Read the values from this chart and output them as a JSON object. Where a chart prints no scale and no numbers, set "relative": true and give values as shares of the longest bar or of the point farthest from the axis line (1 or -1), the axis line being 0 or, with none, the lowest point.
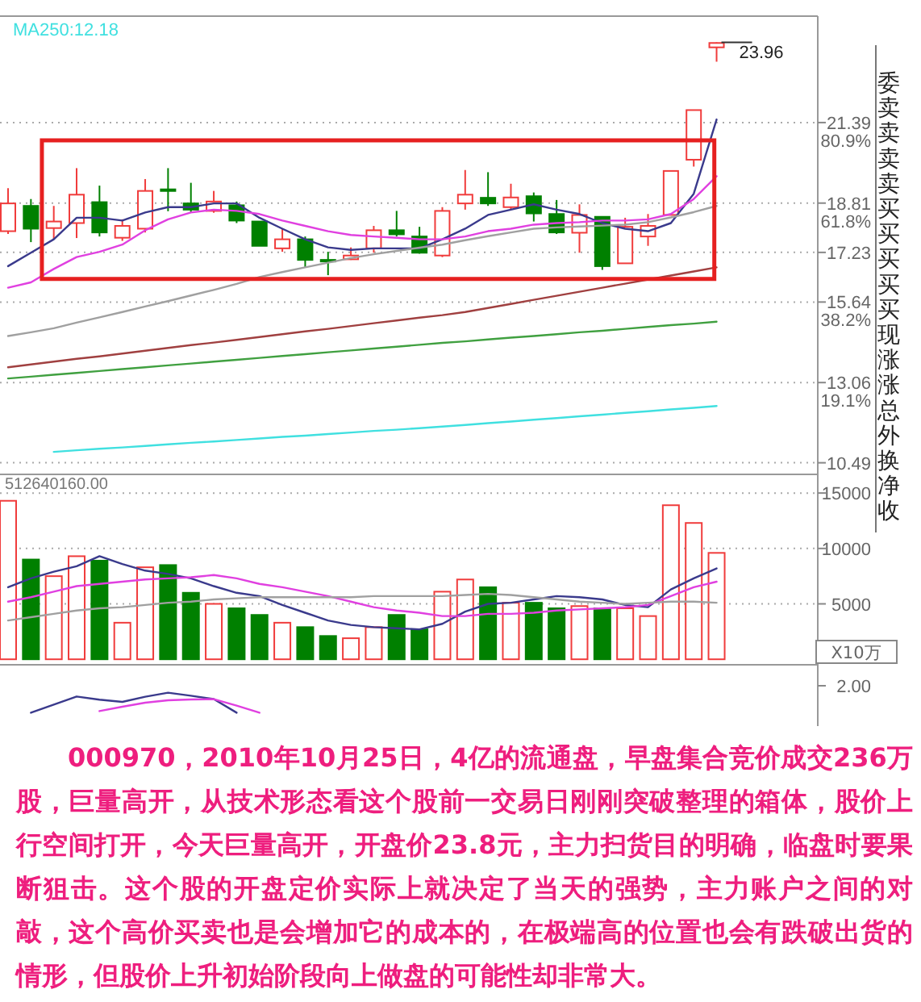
{
  "chart_data": [
    {
      "type": "candlestick",
      "categories": [
        null,
        null,
        null,
        null,
        null,
        null,
        null,
        null,
        null,
        null,
        null,
        null,
        null,
        null,
        null,
        null,
        null,
        null,
        null,
        null,
        null,
        null,
        null,
        null,
        null,
        null,
        null,
        null,
        null,
        null,
        null,
        null
      ],
      "ohlc": [
        [
          17.91,
          19.29,
          17.82,
          18.8
        ],
        [
          18.72,
          18.94,
          17.56,
          17.99
        ],
        [
          18.01,
          18.72,
          17.65,
          18.22
        ],
        [
          18.17,
          19.93,
          17.69,
          19.08
        ],
        [
          18.84,
          19.37,
          17.74,
          17.87
        ],
        [
          17.7,
          18.29,
          17.6,
          18.08
        ],
        [
          17.99,
          19.58,
          17.87,
          19.2
        ],
        [
          19.25,
          19.93,
          18.55,
          19.2
        ],
        [
          18.8,
          19.46,
          18.51,
          18.6
        ],
        [
          18.56,
          19.2,
          18.5,
          18.86
        ],
        [
          18.74,
          18.86,
          18.17,
          18.25
        ],
        [
          18.22,
          18.22,
          17.44,
          17.44
        ],
        [
          17.36,
          17.99,
          17.25,
          17.65
        ],
        [
          17.65,
          17.74,
          16.75,
          16.99
        ],
        [
          16.99,
          17.25,
          16.5,
          16.96
        ],
        [
          17.01,
          17.39,
          16.99,
          17.13
        ],
        [
          17.36,
          18.08,
          17.22,
          17.94
        ],
        [
          17.94,
          18.56,
          17.74,
          17.81
        ],
        [
          17.74,
          18.05,
          17.19,
          17.22
        ],
        [
          17.13,
          18.68,
          17.08,
          18.56
        ],
        [
          18.8,
          19.87,
          18.6,
          19.08
        ],
        [
          18.98,
          19.8,
          18.72,
          18.8
        ],
        [
          18.68,
          19.43,
          18.6,
          18.99
        ],
        [
          19.03,
          19.15,
          18.22,
          18.48
        ],
        [
          18.46,
          18.91,
          17.82,
          17.87
        ],
        [
          17.86,
          18.77,
          17.22,
          18.43
        ],
        [
          18.37,
          18.37,
          16.67,
          16.79
        ],
        [
          16.88,
          18.34,
          16.88,
          18.05
        ],
        [
          17.74,
          18.46,
          17.44,
          18.08
        ],
        [
          18.43,
          19.84,
          18.43,
          19.84
        ],
        [
          20.2,
          21.79,
          19.98,
          21.79
        ],
        [
          23.8,
          23.96,
          23.34,
          23.94
        ]
      ],
      "colors": [
        "#f03c3c",
        "#008000",
        "#f03c3c",
        "#f03c3c",
        "#008000",
        "#f03c3c",
        "#f03c3c",
        "#008000",
        "#008000",
        "#f03c3c",
        "#008000",
        "#008000",
        "#f03c3c",
        "#008000",
        "#008000",
        "#f03c3c",
        "#f03c3c",
        "#008000",
        "#008000",
        "#f03c3c",
        "#f03c3c",
        "#008000",
        "#f03c3c",
        "#008000",
        "#008000",
        "#f03c3c",
        "#008000",
        "#f03c3c",
        "#f03c3c",
        "#f03c3c",
        "#f03c3c",
        "#f03c3c"
      ],
      "series": [
        {
          "type": "line",
          "color": "#3a3a8c",
          "values": [
            16.79,
            17.22,
            17.65,
            18.34,
            18.34,
            18.25,
            18.51,
            18.68,
            18.68,
            18.8,
            18.8,
            18.34,
            17.99,
            17.65,
            17.39,
            17.31,
            17.36,
            17.36,
            17.36,
            17.65,
            17.99,
            18.43,
            18.6,
            18.77,
            18.6,
            18.46,
            18.17,
            17.99,
            17.91,
            18.17,
            19.11,
            21.49
          ]
        },
        {
          "type": "line",
          "color": "#e040e0",
          "values": [
            16.1,
            16.27,
            16.7,
            17.08,
            17.25,
            17.48,
            17.94,
            18.29,
            18.51,
            18.6,
            18.56,
            18.46,
            18.25,
            18.08,
            17.91,
            17.79,
            17.74,
            17.7,
            17.65,
            17.65,
            17.74,
            17.91,
            17.99,
            18.12,
            18.17,
            18.2,
            18.25,
            18.25,
            18.29,
            18.46,
            18.94,
            19.67
          ]
        },
        {
          "type": "line",
          "color": "#a0a0a0",
          "values": [
            14.55,
            14.67,
            14.8,
            14.98,
            15.15,
            15.32,
            15.5,
            15.67,
            15.85,
            16.03,
            16.22,
            16.44,
            16.6,
            16.75,
            16.9,
            17.05,
            17.17,
            17.28,
            17.38,
            17.48,
            17.62,
            17.75,
            17.87,
            17.99,
            18.03,
            18.06,
            18.09,
            18.12,
            18.2,
            18.35,
            18.52,
            18.72
          ]
        },
        {
          "type": "line",
          "color": "#a04040",
          "values": [
            13.55,
            13.64,
            13.73,
            13.82,
            13.9,
            13.99,
            14.08,
            14.17,
            14.26,
            14.34,
            14.43,
            14.52,
            14.61,
            14.7,
            14.78,
            14.87,
            14.96,
            15.05,
            15.14,
            15.22,
            15.32,
            15.45,
            15.58,
            15.71,
            15.84,
            15.97,
            16.1,
            16.23,
            16.36,
            16.49,
            16.62,
            16.75
          ]
        },
        {
          "type": "line",
          "color": "#40a040",
          "values": [
            13.19,
            13.25,
            13.31,
            13.37,
            13.43,
            13.49,
            13.55,
            13.61,
            13.67,
            13.73,
            13.79,
            13.85,
            13.91,
            13.97,
            14.03,
            14.09,
            14.15,
            14.21,
            14.27,
            14.33,
            14.38,
            14.44,
            14.5,
            14.55,
            14.61,
            14.67,
            14.72,
            14.78,
            14.84,
            14.9,
            14.95,
            15.01
          ]
        },
        {
          "type": "line",
          "name": "MA250:12.18",
          "color": "#40e0e0",
          "values": [
            null,
            null,
            10.84,
            10.89,
            10.94,
            10.98,
            11.03,
            11.08,
            11.13,
            11.17,
            11.22,
            11.27,
            11.32,
            11.36,
            11.41,
            11.46,
            11.51,
            11.55,
            11.6,
            11.65,
            11.7,
            11.76,
            11.81,
            11.87,
            11.92,
            11.98,
            12.03,
            12.09,
            12.14,
            12.2,
            12.25,
            12.31
          ]
        }
      ],
      "ylim": [
        10.17,
        24.8
      ],
      "yticks": [
        {
          "value": 10.49,
          "label": "10.49"
        },
        {
          "value": 13.06,
          "label": "13.06\n19.1%"
        },
        {
          "value": 15.64,
          "label": "15.64\n38.2%"
        },
        {
          "value": 17.23,
          "label": "17.23"
        },
        {
          "value": 18.81,
          "label": "18.81\n61.8%"
        },
        {
          "value": 21.39,
          "label": "21.39\n80.9%"
        }
      ],
      "grid": "y",
      "annotations": [
        "23.96",
        "委卖卖卖卖买买买买买现涨涨总外换净收",
        "000970，2010年10月25日，4亿的流通盘，早盘集合竞价成交236万股，巨量高开，从技术形态看这个股前一交易日刚刚突破整理的箱体，股价上行空间打开，今天巨量高开，开盘价23.8元，主力扫货目的明确，临盘时要果断狙击。这个股的开盘定价实际上就决定了当天的强势，主力账户之间的对敲，这个高价买卖也是会增加它的成本的，在极端高的位置也会有跌破出货的情形，但股价上升初始阶段向上做盘的可能性却非常大。"
      ]
    },
    {
      "type": "bar",
      "categories": [
        null,
        null,
        null,
        null,
        null,
        null,
        null,
        null,
        null,
        null,
        null,
        null,
        null,
        null,
        null,
        null,
        null,
        null,
        null,
        null,
        null,
        null,
        null,
        null,
        null,
        null,
        null,
        null,
        null,
        null,
        null,
        null
      ],
      "series": [
        {
          "type": "bar",
          "colors": [
            "#f03c3c",
            "#008000",
            "#f03c3c",
            "#f03c3c",
            "#008000",
            "#f03c3c",
            "#f03c3c",
            "#008000",
            "#008000",
            "#f03c3c",
            "#008000",
            "#008000",
            "#f03c3c",
            "#008000",
            "#008000",
            "#f03c3c",
            "#f03c3c",
            "#008000",
            "#008000",
            "#f03c3c",
            "#f03c3c",
            "#008000",
            "#f03c3c",
            "#008000",
            "#008000",
            "#f03c3c",
            "#008000",
            "#f03c3c",
            "#f03c3c",
            "#f03c3c",
            "#f03c3c",
            "#f03c3c"
          ],
          "values": [
            14300,
            9000,
            7500,
            9300,
            8900,
            3300,
            8300,
            8500,
            6000,
            5000,
            4600,
            4000,
            3300,
            2900,
            2100,
            1900,
            2900,
            4000,
            2700,
            6100,
            7200,
            6500,
            5100,
            5100,
            4600,
            4800,
            4600,
            4600,
            3900,
            13900,
            12300,
            9600
          ]
        },
        {
          "type": "line",
          "color": "#3a3a8c",
          "values": [
            6500,
            7300,
            7900,
            8400,
            9300,
            8600,
            8000,
            7700,
            7300,
            6600,
            6000,
            5700,
            4900,
            4200,
            3500,
            3100,
            2900,
            2800,
            2700,
            3200,
            4300,
            5000,
            5100,
            5400,
            5700,
            5600,
            5400,
            4900,
            4700,
            6300,
            7300,
            8200
          ]
        },
        {
          "type": "line",
          "color": "#e040e0",
          "values": [
            5200,
            5600,
            6100,
            6600,
            6800,
            7000,
            7200,
            7300,
            7400,
            7600,
            7300,
            6800,
            6500,
            6100,
            5700,
            5200,
            4700,
            4400,
            4200,
            3900,
            3900,
            4100,
            4100,
            4200,
            4400,
            4500,
            4600,
            4700,
            4900,
            5700,
            6500,
            7000
          ]
        },
        {
          "type": "line",
          "color": "#a0a0a0",
          "values": [
            3500,
            3800,
            4100,
            4400,
            4600,
            4700,
            4900,
            5100,
            5200,
            5400,
            5500,
            5600,
            5600,
            5600,
            5600,
            5600,
            5700,
            5700,
            5700,
            5700,
            5800,
            5900,
            5800,
            5600,
            5400,
            5200,
            5100,
            5000,
            5100,
            5200,
            5200,
            5100
          ]
        }
      ],
      "ylim": [
        0,
        16800
      ],
      "yticks": [
        5000,
        10000,
        15000
      ],
      "grid": "y",
      "annotations": [
        "512640160.00",
        "X10万"
      ]
    },
    {
      "type": "line",
      "relative": true,
      "categories": [
        null,
        null,
        null,
        null,
        null,
        null,
        null,
        null,
        null,
        null,
        null,
        null,
        null,
        null,
        null,
        null,
        null,
        null,
        null,
        null,
        null,
        null,
        null,
        null,
        null,
        null,
        null,
        null,
        null,
        null,
        null,
        null
      ],
      "series": [
        {
          "color": "#3a3a8c",
          "values": [
            null,
            0,
            0.4,
            0.81,
            0.65,
            0.54,
            0.8,
            1,
            0.85,
            0.68,
            0,
            null,
            null,
            null,
            null,
            null,
            null,
            null,
            null,
            null,
            null,
            null,
            null,
            null,
            null,
            null,
            null,
            null,
            null,
            null,
            null,
            null
          ]
        },
        {
          "color": "#e040e0",
          "values": [
            null,
            null,
            null,
            null,
            0.08,
            0.3,
            0.5,
            0.62,
            0.66,
            0.68,
            0.35,
            0,
            null,
            null,
            null,
            null,
            null,
            null,
            null,
            null,
            null,
            null,
            null,
            null,
            null,
            null,
            null,
            null,
            null,
            null,
            null,
            null
          ]
        }
      ],
      "annotations": [
        "2.00"
      ]
    }
  ]
}
